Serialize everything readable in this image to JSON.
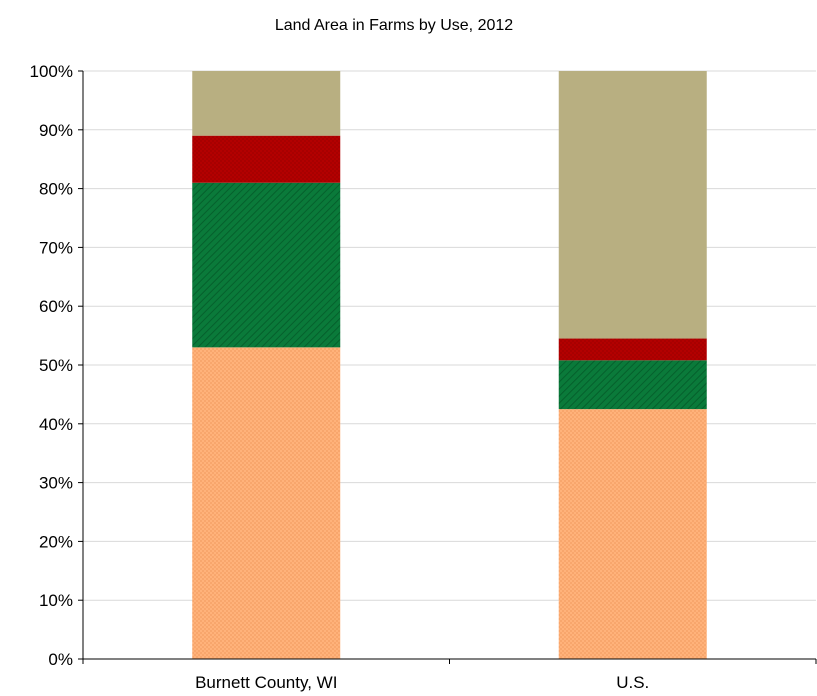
{
  "chart_data": {
    "type": "bar",
    "stacked": true,
    "normalized": true,
    "title": "Land Area in Farms by Use, 2012",
    "xlabel": "",
    "ylabel": "",
    "ylim": [
      0,
      100
    ],
    "y_ticks": [
      0,
      10,
      20,
      30,
      40,
      50,
      60,
      70,
      80,
      90,
      100
    ],
    "y_tick_format": "percent",
    "grid": true,
    "legend": "none",
    "categories": [
      "Burnett County, WI",
      "U.S."
    ],
    "series": [
      {
        "values": [
          53,
          42.5
        ],
        "color": "#FFB27A",
        "pattern": "dots"
      },
      {
        "values": [
          28,
          8.3
        ],
        "color": "#0A7A3A",
        "pattern": "diagonal-hatch"
      },
      {
        "values": [
          8,
          3.7
        ],
        "color": "#B30000",
        "pattern": "dots"
      },
      {
        "values": [
          11,
          45.5
        ],
        "color": "#B8AF81",
        "pattern": "solid"
      }
    ]
  }
}
